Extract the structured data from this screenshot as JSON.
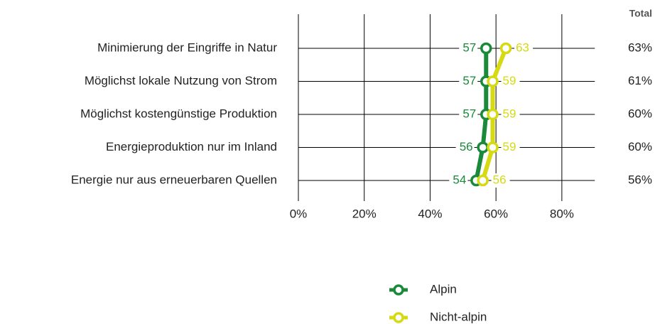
{
  "chart_data": {
    "type": "dot-line",
    "categories": [
      "Minimierung der Eingriffe in Natur",
      "Möglichst lokale Nutzung von Strom",
      "Möglichst kostengünstige Produktion",
      "Energieproduktion nur im Inland",
      "Energie nur aus erneuerbaren Quellen"
    ],
    "series": [
      {
        "name": "Alpin",
        "color": "#1a8a3a",
        "values": [
          57,
          57,
          57,
          56,
          54
        ]
      },
      {
        "name": "Nicht-alpin",
        "color": "#d6da12",
        "values": [
          63,
          59,
          59,
          59,
          56
        ]
      }
    ],
    "totals": {
      "title": "Total",
      "values": [
        63,
        61,
        60,
        60,
        56
      ],
      "value_labels": [
        "63%",
        "61%",
        "60%",
        "60%",
        "56%"
      ]
    },
    "xlim": [
      0,
      90
    ],
    "xticks": [
      {
        "value": 0,
        "label": "0%"
      },
      {
        "value": 20,
        "label": "20%"
      },
      {
        "value": 40,
        "label": "40%"
      },
      {
        "value": 60,
        "label": "60%"
      },
      {
        "value": 80,
        "label": "80%"
      }
    ],
    "grid": true
  }
}
